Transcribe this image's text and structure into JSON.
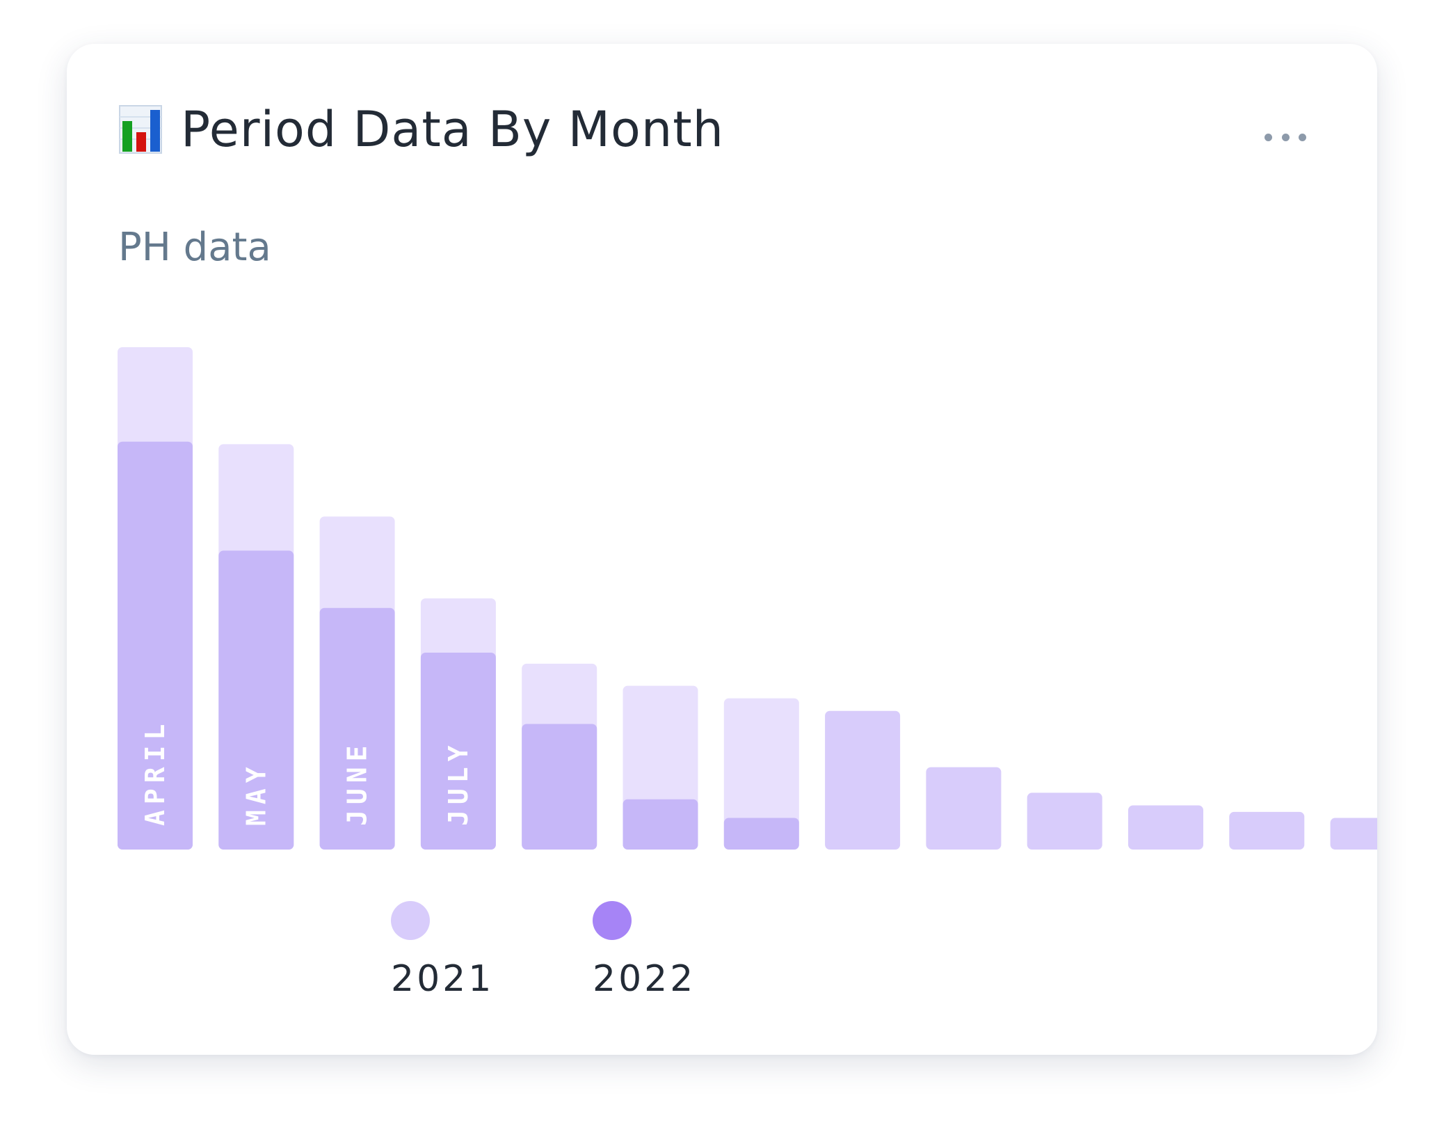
{
  "card": {
    "title": "Period Data By Month",
    "subtitle": "PH data",
    "title_icon": "bar-chart-icon",
    "menu_icon": "more-horizontal-icon"
  },
  "colors": {
    "series_2021": "#d8ccfb",
    "series_2021_extension": "#e8e0fd",
    "series_2022": "#c6b7f8",
    "legend_2021": "#d8ccfb",
    "legend_2022": "#a684f6",
    "month_label": "#ffffff"
  },
  "chart_data": {
    "type": "bar",
    "layout": "overlapping",
    "title": "Period Data By Month",
    "subtitle": "PH data",
    "categories": [
      "APRIL",
      "MAY",
      "JUNE",
      "JULY",
      "",
      "",
      "",
      "",
      "",
      "",
      "",
      "",
      ""
    ],
    "series": [
      {
        "name": "2021",
        "values": [
          100,
          80.7,
          66.3,
          50,
          37,
          32.6,
          30.1,
          27.6,
          16.4,
          11.3,
          8.8,
          7.5,
          6.3
        ]
      },
      {
        "name": "2022",
        "values": [
          81.2,
          59.5,
          48.1,
          39.2,
          25,
          10,
          6.3,
          null,
          null,
          null,
          null,
          null,
          null
        ]
      }
    ],
    "ylim": [
      0,
      100
    ],
    "xlabel": "",
    "ylabel": "",
    "grid": false,
    "legend": "bottom",
    "legend_entries": [
      "2021",
      "2022"
    ]
  }
}
